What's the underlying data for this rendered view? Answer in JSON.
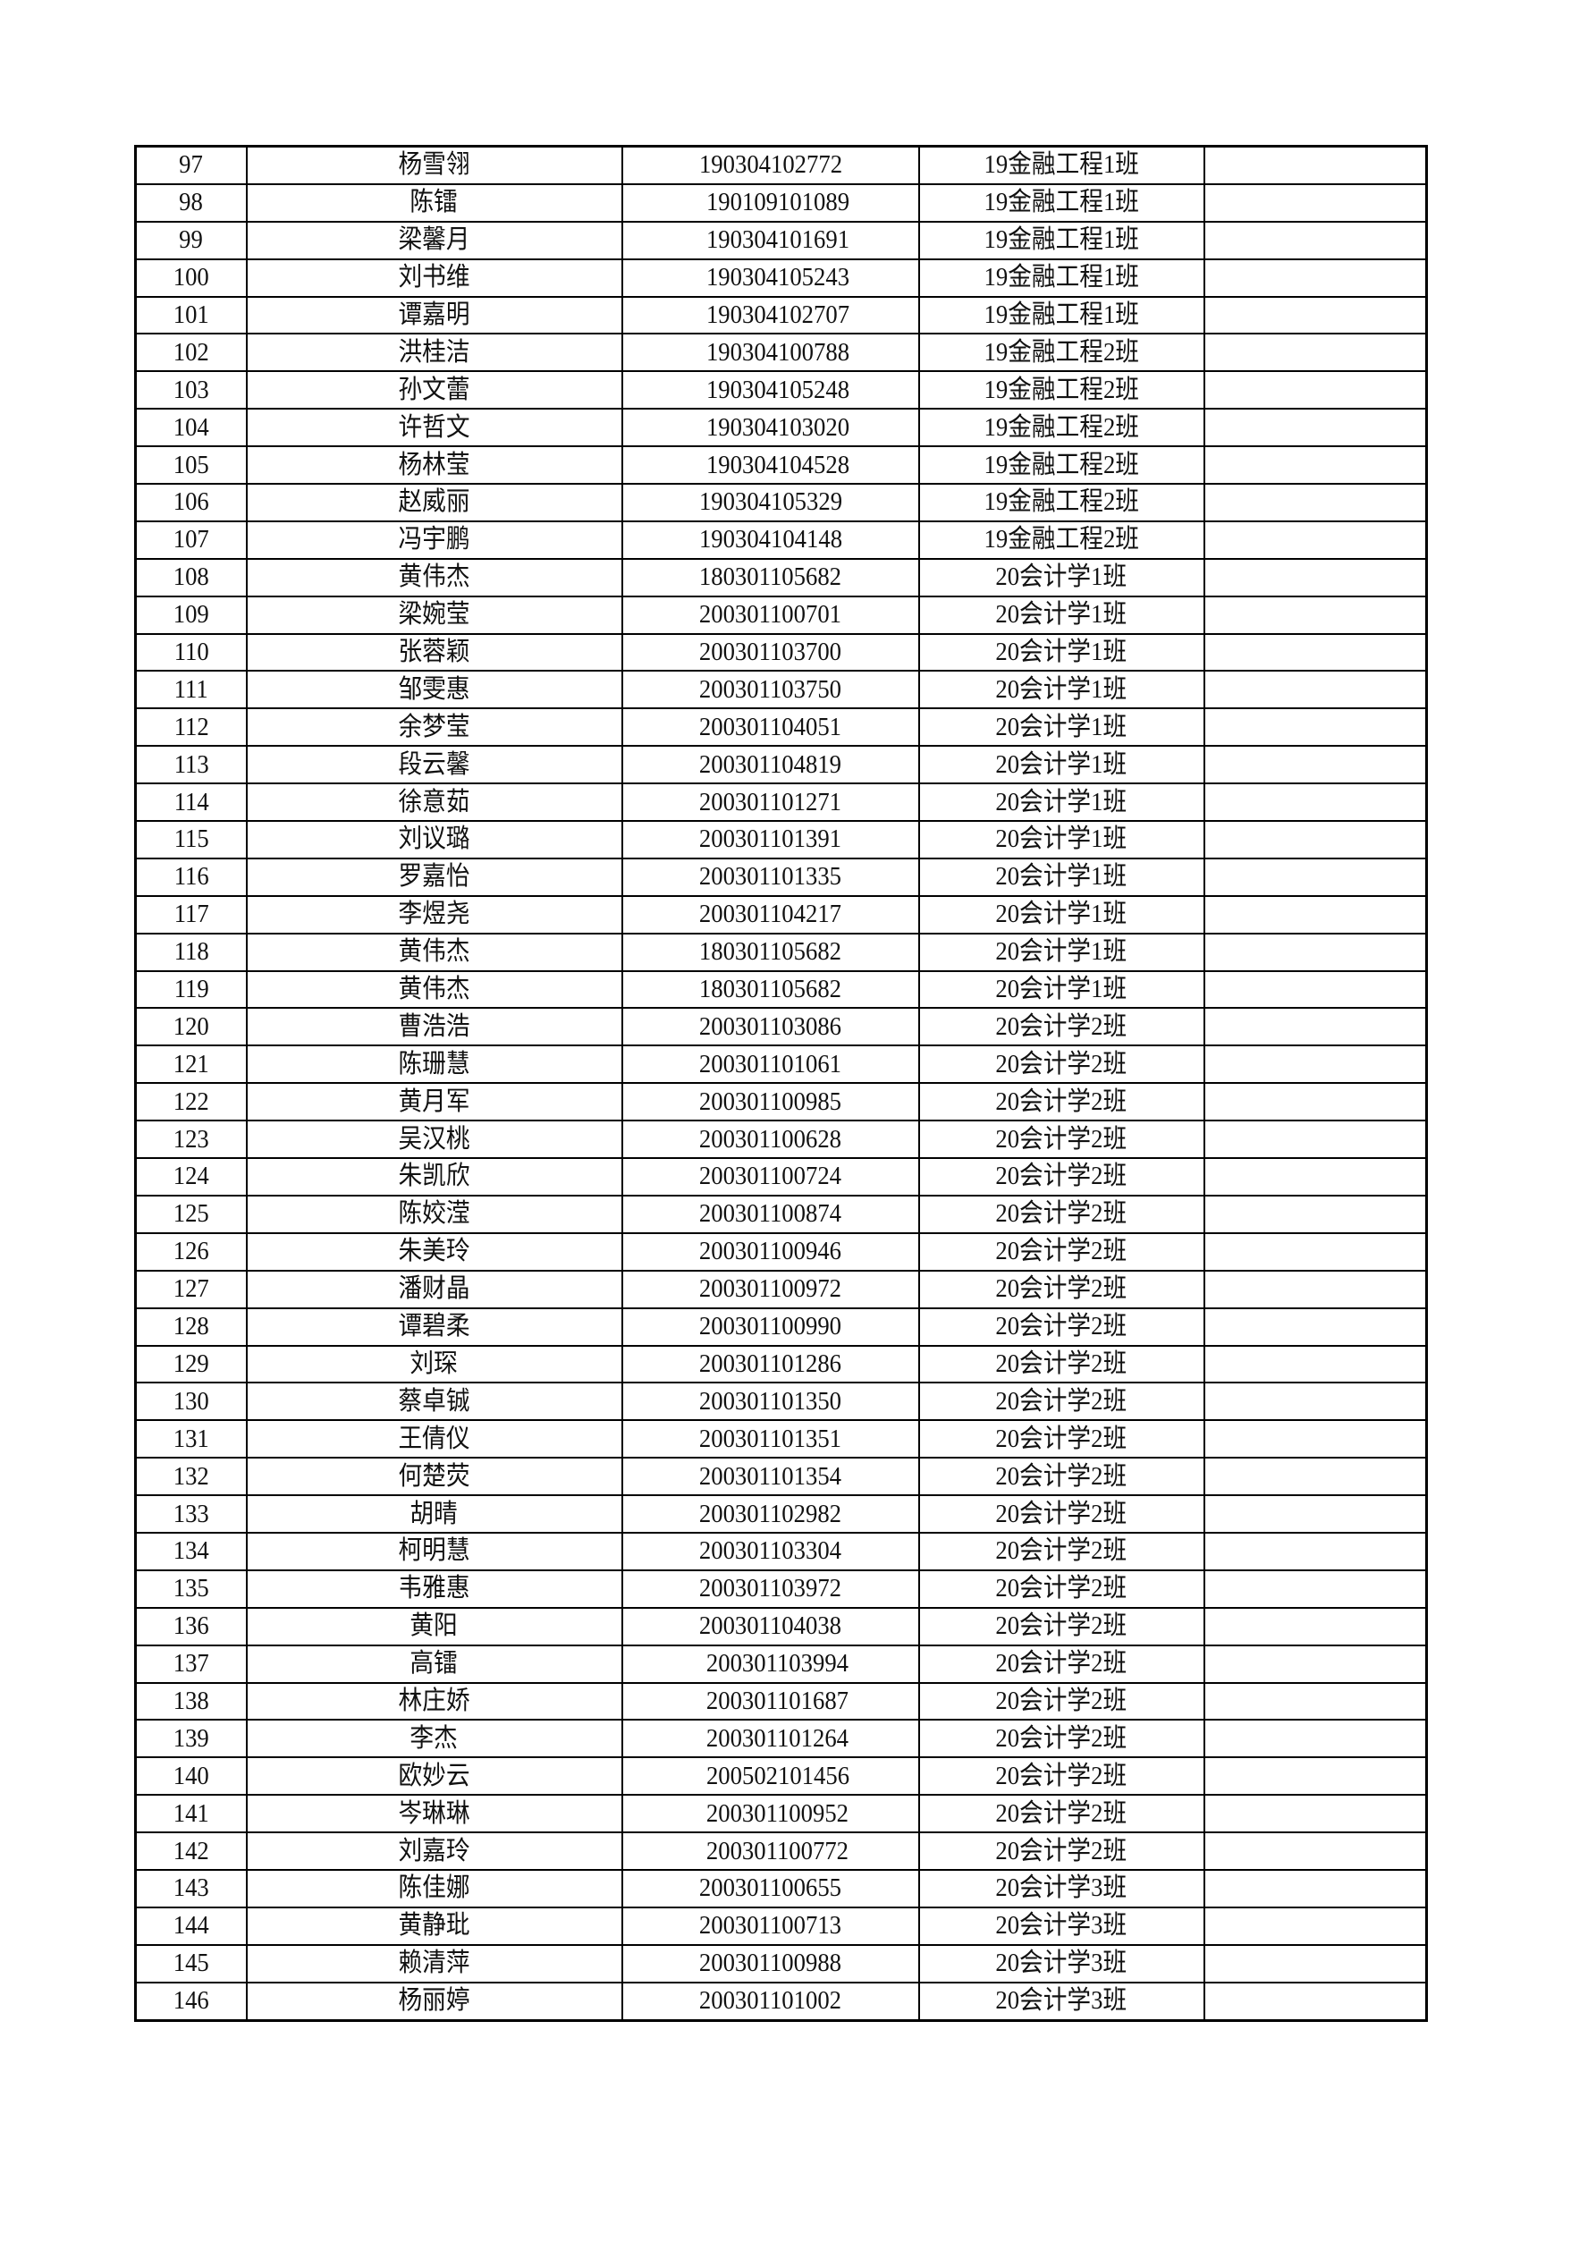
{
  "rows": [
    {
      "no": "97",
      "name": "杨雪翎",
      "id": "190304102772",
      "class": "19金融工程1班",
      "note": ""
    },
    {
      "no": "98",
      "name": "陈镭",
      "id": "190109101089",
      "class": "19金融工程1班",
      "note": ""
    },
    {
      "no": "99",
      "name": "梁馨月",
      "id": "190304101691",
      "class": "19金融工程1班",
      "note": ""
    },
    {
      "no": "100",
      "name": "刘书维",
      "id": "190304105243",
      "class": "19金融工程1班",
      "note": ""
    },
    {
      "no": "101",
      "name": "谭嘉明",
      "id": "190304102707",
      "class": "19金融工程1班",
      "note": ""
    },
    {
      "no": "102",
      "name": "洪桂洁",
      "id": "190304100788",
      "class": "19金融工程2班",
      "note": ""
    },
    {
      "no": "103",
      "name": "孙文蕾",
      "id": "190304105248",
      "class": "19金融工程2班",
      "note": ""
    },
    {
      "no": "104",
      "name": "许哲文",
      "id": "190304103020",
      "class": "19金融工程2班",
      "note": ""
    },
    {
      "no": "105",
      "name": "杨林莹",
      "id": "190304104528",
      "class": "19金融工程2班",
      "note": ""
    },
    {
      "no": "106",
      "name": "赵威丽",
      "id": "190304105329",
      "class": "19金融工程2班",
      "note": ""
    },
    {
      "no": "107",
      "name": "冯宇鹏",
      "id": "190304104148",
      "class": "19金融工程2班",
      "note": ""
    },
    {
      "no": "108",
      "name": "黄伟杰",
      "id": "180301105682",
      "class": "20会计学1班",
      "note": ""
    },
    {
      "no": "109",
      "name": "梁婉莹",
      "id": "200301100701",
      "class": "20会计学1班",
      "note": ""
    },
    {
      "no": "110",
      "name": "张蓉颖",
      "id": "200301103700",
      "class": "20会计学1班",
      "note": ""
    },
    {
      "no": "111",
      "name": "邹雯惠",
      "id": "200301103750",
      "class": "20会计学1班",
      "note": ""
    },
    {
      "no": "112",
      "name": "余梦莹",
      "id": "200301104051",
      "class": "20会计学1班",
      "note": ""
    },
    {
      "no": "113",
      "name": "段云馨",
      "id": "200301104819",
      "class": "20会计学1班",
      "note": ""
    },
    {
      "no": "114",
      "name": "徐意茹",
      "id": "200301101271",
      "class": "20会计学1班",
      "note": ""
    },
    {
      "no": "115",
      "name": "刘议璐",
      "id": "200301101391",
      "class": "20会计学1班",
      "note": ""
    },
    {
      "no": "116",
      "name": "罗嘉怡",
      "id": "200301101335",
      "class": "20会计学1班",
      "note": ""
    },
    {
      "no": "117",
      "name": "李煜尧",
      "id": "200301104217",
      "class": "20会计学1班",
      "note": ""
    },
    {
      "no": "118",
      "name": "黄伟杰",
      "id": "180301105682",
      "class": "20会计学1班",
      "note": ""
    },
    {
      "no": "119",
      "name": "黄伟杰",
      "id": "180301105682",
      "class": "20会计学1班",
      "note": ""
    },
    {
      "no": "120",
      "name": "曹浩浩",
      "id": "200301103086",
      "class": "20会计学2班",
      "note": ""
    },
    {
      "no": "121",
      "name": "陈珊慧",
      "id": "200301101061",
      "class": "20会计学2班",
      "note": ""
    },
    {
      "no": "122",
      "name": "黄月军",
      "id": "200301100985",
      "class": "20会计学2班",
      "note": ""
    },
    {
      "no": "123",
      "name": "吴汉桃",
      "id": "200301100628",
      "class": "20会计学2班",
      "note": ""
    },
    {
      "no": "124",
      "name": "朱凯欣",
      "id": "200301100724",
      "class": "20会计学2班",
      "note": ""
    },
    {
      "no": "125",
      "name": "陈姣滢",
      "id": "200301100874",
      "class": "20会计学2班",
      "note": ""
    },
    {
      "no": "126",
      "name": "朱美玲",
      "id": "200301100946",
      "class": "20会计学2班",
      "note": ""
    },
    {
      "no": "127",
      "name": "潘财晶",
      "id": "200301100972",
      "class": "20会计学2班",
      "note": ""
    },
    {
      "no": "128",
      "name": "谭碧柔",
      "id": "200301100990",
      "class": "20会计学2班",
      "note": ""
    },
    {
      "no": "129",
      "name": "刘琛",
      "id": "200301101286",
      "class": "20会计学2班",
      "note": ""
    },
    {
      "no": "130",
      "name": "蔡卓铖",
      "id": "200301101350",
      "class": "20会计学2班",
      "note": ""
    },
    {
      "no": "131",
      "name": "王倩仪",
      "id": "200301101351",
      "class": "20会计学2班",
      "note": ""
    },
    {
      "no": "132",
      "name": "何楚荧",
      "id": "200301101354",
      "class": "20会计学2班",
      "note": ""
    },
    {
      "no": "133",
      "name": "胡晴",
      "id": "200301102982",
      "class": "20会计学2班",
      "note": ""
    },
    {
      "no": "134",
      "name": "柯明慧",
      "id": "200301103304",
      "class": "20会计学2班",
      "note": ""
    },
    {
      "no": "135",
      "name": "韦雅惠",
      "id": "200301103972",
      "class": "20会计学2班",
      "note": ""
    },
    {
      "no": "136",
      "name": "黄阳",
      "id": "200301104038",
      "class": "20会计学2班",
      "note": ""
    },
    {
      "no": "137",
      "name": "高镭",
      "id": "200301103994",
      "class": "20会计学2班",
      "note": ""
    },
    {
      "no": "138",
      "name": "林庄娇",
      "id": "200301101687",
      "class": "20会计学2班",
      "note": ""
    },
    {
      "no": "139",
      "name": "李杰",
      "id": "200301101264",
      "class": "20会计学2班",
      "note": ""
    },
    {
      "no": "140",
      "name": "欧妙云",
      "id": "200502101456",
      "class": "20会计学2班",
      "note": ""
    },
    {
      "no": "141",
      "name": "岑琳琳",
      "id": "200301100952",
      "class": "20会计学2班",
      "note": ""
    },
    {
      "no": "142",
      "name": "刘嘉玲",
      "id": "200301100772",
      "class": "20会计学2班",
      "note": ""
    },
    {
      "no": "143",
      "name": "陈佳娜",
      "id": "200301100655",
      "class": "20会计学3班",
      "note": ""
    },
    {
      "no": "144",
      "name": "黄静玭",
      "id": "200301100713",
      "class": "20会计学3班",
      "note": ""
    },
    {
      "no": "145",
      "name": "赖清萍",
      "id": "200301100988",
      "class": "20会计学3班",
      "note": ""
    },
    {
      "no": "146",
      "name": "杨丽婷",
      "id": "200301101002",
      "class": "20会计学3班",
      "note": ""
    }
  ]
}
